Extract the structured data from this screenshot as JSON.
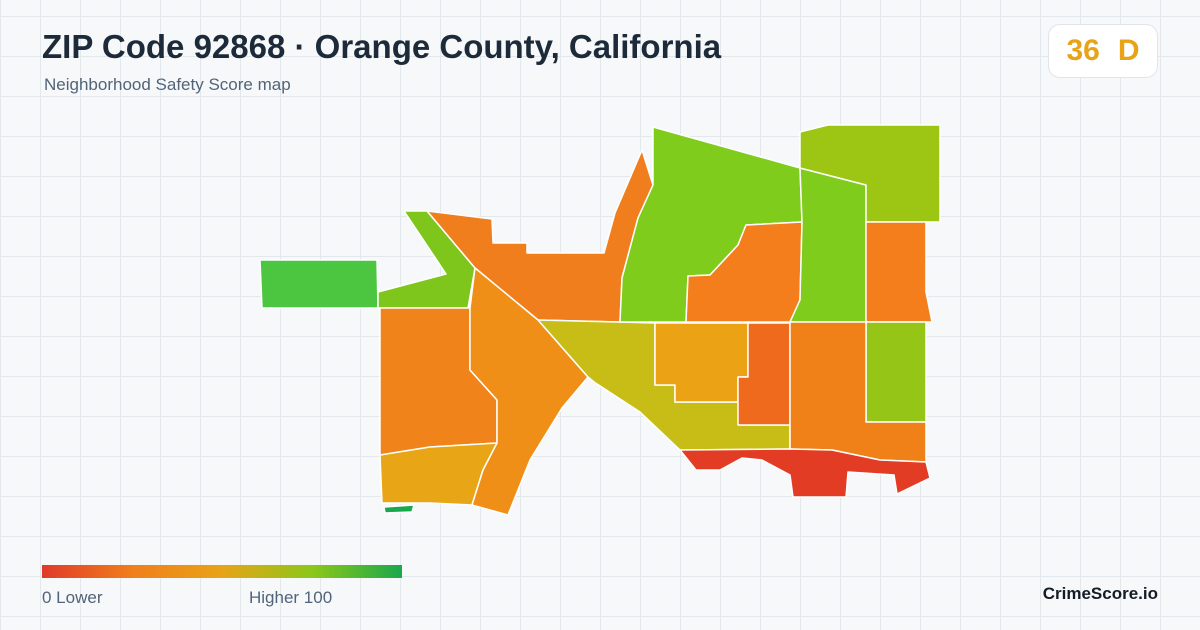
{
  "header": {
    "title": "ZIP Code 92868 · Orange County, California",
    "subtitle": "Neighborhood Safety Score map"
  },
  "score": {
    "value": "36",
    "grade": "D",
    "color": "#e8a317"
  },
  "legend": {
    "low_label": "0  Lower",
    "high_label": "Higher  100",
    "min": 0,
    "max": 100,
    "gradient": [
      "#e03a2a",
      "#f07e1c",
      "#e8a317",
      "#8cc719",
      "#1aa84c"
    ]
  },
  "brand": "CrimeScore.io",
  "map": {
    "regions": [
      {
        "name": "region-far-west",
        "color": "#4cc640",
        "safety": "high"
      },
      {
        "name": "region-west-strip",
        "color": "#7fc61c",
        "safety": "high"
      },
      {
        "name": "region-northwest-orange",
        "color": "#f07e1c",
        "safety": "low"
      },
      {
        "name": "region-west-block",
        "color": "#f0841a",
        "safety": "low"
      },
      {
        "name": "region-west-south",
        "color": "#e8a617",
        "safety": "medium"
      },
      {
        "name": "region-south-sliver",
        "color": "#1aa84c",
        "safety": "high"
      },
      {
        "name": "region-central-orange",
        "color": "#f08f18",
        "safety": "low"
      },
      {
        "name": "region-central-olive",
        "color": "#c8bc16",
        "safety": "medium"
      },
      {
        "name": "region-central-square",
        "color": "#eba215",
        "safety": "medium"
      },
      {
        "name": "region-central-redorange",
        "color": "#f06a1d",
        "safety": "low"
      },
      {
        "name": "region-north-green",
        "color": "#7fcc1c",
        "safety": "high"
      },
      {
        "name": "region-north-orange",
        "color": "#f37e1b",
        "safety": "low"
      },
      {
        "name": "region-northeast-green",
        "color": "#7fcc1c",
        "safety": "high"
      },
      {
        "name": "region-northeast-yellowgreen",
        "color": "#9dc614",
        "safety": "high"
      },
      {
        "name": "region-east-orange",
        "color": "#f37e1b",
        "safety": "low"
      },
      {
        "name": "region-east-green",
        "color": "#95c617",
        "safety": "high"
      },
      {
        "name": "region-southeast-orange",
        "color": "#f08118",
        "safety": "low"
      },
      {
        "name": "region-south-red",
        "color": "#e33c24",
        "safety": "lowest"
      }
    ]
  }
}
